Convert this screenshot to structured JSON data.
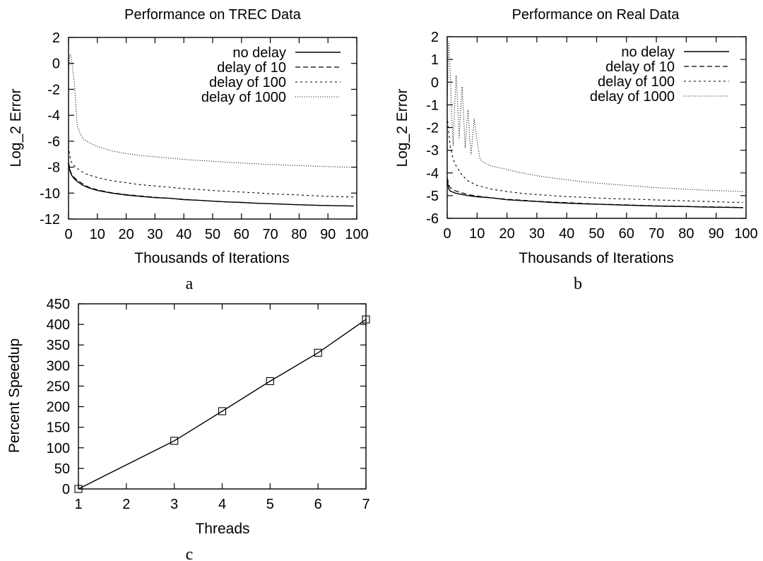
{
  "chart_data": [
    {
      "type": "line",
      "panel_label": "a",
      "title": "Performance on TREC Data",
      "xlabel": "Thousands of Iterations",
      "ylabel": "Log_2 Error",
      "xlim": [
        0,
        100
      ],
      "ylim": [
        -12,
        2
      ],
      "xticks": [
        0,
        10,
        20,
        30,
        40,
        50,
        60,
        70,
        80,
        90,
        100
      ],
      "yticks": [
        -12,
        -10,
        -8,
        -6,
        -4,
        -2,
        0,
        2
      ],
      "grid": false,
      "legend_position": "top-right",
      "series": [
        {
          "name": "no delay",
          "style": "solid",
          "x": [
            0,
            0.5,
            1,
            2,
            3,
            5,
            7,
            10,
            15,
            20,
            25,
            30,
            35,
            40,
            45,
            50,
            55,
            60,
            65,
            70,
            75,
            80,
            85,
            90,
            95,
            99
          ],
          "y": [
            -7.8,
            -8.3,
            -8.6,
            -8.9,
            -9.1,
            -9.4,
            -9.6,
            -9.8,
            -10.0,
            -10.15,
            -10.25,
            -10.35,
            -10.4,
            -10.5,
            -10.55,
            -10.62,
            -10.68,
            -10.72,
            -10.78,
            -10.82,
            -10.86,
            -10.9,
            -10.93,
            -10.96,
            -10.98,
            -11.0
          ]
        },
        {
          "name": "delay of 10",
          "style": "dashed",
          "x": [
            0,
            0.5,
            1,
            2,
            3,
            5,
            7,
            10,
            15,
            20,
            25,
            30,
            35,
            40,
            45,
            50,
            55,
            60,
            65,
            70,
            75,
            80,
            85,
            90,
            95,
            99
          ],
          "y": [
            -7.6,
            -8.2,
            -8.5,
            -8.8,
            -9.0,
            -9.3,
            -9.55,
            -9.75,
            -9.98,
            -10.12,
            -10.22,
            -10.32,
            -10.4,
            -10.48,
            -10.55,
            -10.62,
            -10.68,
            -10.72,
            -10.78,
            -10.82,
            -10.86,
            -10.9,
            -10.93,
            -10.96,
            -10.98,
            -11.0
          ]
        },
        {
          "name": "delay of 100",
          "style": "short-dashed",
          "x": [
            0,
            0.5,
            1,
            2,
            3,
            5,
            7,
            10,
            15,
            20,
            25,
            30,
            35,
            40,
            45,
            50,
            55,
            60,
            65,
            70,
            75,
            80,
            85,
            90,
            95,
            99
          ],
          "y": [
            -6.4,
            -7.2,
            -7.6,
            -7.9,
            -8.1,
            -8.4,
            -8.6,
            -8.8,
            -9.05,
            -9.2,
            -9.35,
            -9.45,
            -9.55,
            -9.65,
            -9.72,
            -9.8,
            -9.86,
            -9.92,
            -9.98,
            -10.05,
            -10.1,
            -10.15,
            -10.2,
            -10.25,
            -10.28,
            -10.3
          ]
        },
        {
          "name": "delay of 1000",
          "style": "dotted",
          "x": [
            0,
            0.3,
            0.7,
            1,
            1.5,
            2,
            2.5,
            3,
            4,
            5,
            7,
            10,
            15,
            20,
            25,
            30,
            35,
            40,
            45,
            50,
            55,
            60,
            65,
            70,
            75,
            80,
            85,
            90,
            95,
            99
          ],
          "y": [
            -1.0,
            0.5,
            0.7,
            0.3,
            -0.5,
            -1.5,
            -3.0,
            -4.8,
            -5.4,
            -5.8,
            -6.1,
            -6.4,
            -6.75,
            -6.95,
            -7.1,
            -7.2,
            -7.3,
            -7.4,
            -7.48,
            -7.55,
            -7.62,
            -7.68,
            -7.74,
            -7.8,
            -7.84,
            -7.88,
            -7.92,
            -7.96,
            -7.99,
            -8.0
          ]
        }
      ]
    },
    {
      "type": "line",
      "panel_label": "b",
      "title": "Performance on Real Data",
      "xlabel": "Thousands of Iterations",
      "ylabel": "Log_2 Error",
      "xlim": [
        0,
        100
      ],
      "ylim": [
        -6,
        2
      ],
      "xticks": [
        0,
        10,
        20,
        30,
        40,
        50,
        60,
        70,
        80,
        90,
        100
      ],
      "yticks": [
        -6,
        -5,
        -4,
        -3,
        -2,
        -1,
        0,
        1,
        2
      ],
      "grid": false,
      "legend_position": "top-right",
      "series": [
        {
          "name": "no delay",
          "style": "solid",
          "x": [
            0,
            0.5,
            1,
            2,
            3,
            5,
            7,
            10,
            15,
            20,
            25,
            30,
            35,
            40,
            45,
            50,
            55,
            60,
            65,
            70,
            75,
            80,
            85,
            90,
            95,
            99
          ],
          "y": [
            -4.3,
            -4.7,
            -4.8,
            -4.85,
            -4.9,
            -4.95,
            -5.0,
            -5.05,
            -5.1,
            -5.18,
            -5.22,
            -5.26,
            -5.3,
            -5.33,
            -5.36,
            -5.38,
            -5.4,
            -5.42,
            -5.44,
            -5.46,
            -5.47,
            -5.48,
            -5.5,
            -5.51,
            -5.52,
            -5.53
          ]
        },
        {
          "name": "delay of 10",
          "style": "dashed",
          "x": [
            0,
            0.5,
            1,
            2,
            3,
            5,
            7,
            10,
            15,
            20,
            25,
            30,
            35,
            40,
            45,
            50,
            55,
            60,
            65,
            70,
            75,
            80,
            85,
            90,
            95,
            99
          ],
          "y": [
            -4.2,
            -4.5,
            -4.65,
            -4.75,
            -4.8,
            -4.88,
            -4.95,
            -5.02,
            -5.1,
            -5.16,
            -5.2,
            -5.25,
            -5.28,
            -5.31,
            -5.34,
            -5.37,
            -5.39,
            -5.41,
            -5.43,
            -5.45,
            -5.46,
            -5.47,
            -5.49,
            -5.5,
            -5.51,
            -5.52
          ]
        },
        {
          "name": "delay of 100",
          "style": "short-dashed",
          "x": [
            0,
            0.5,
            1,
            2,
            3,
            4,
            5,
            7,
            10,
            15,
            20,
            25,
            30,
            35,
            40,
            45,
            50,
            55,
            60,
            65,
            70,
            75,
            80,
            85,
            90,
            95,
            99
          ],
          "y": [
            -1.5,
            -2.2,
            -2.8,
            -3.4,
            -3.7,
            -3.9,
            -4.1,
            -4.35,
            -4.55,
            -4.72,
            -4.82,
            -4.9,
            -4.95,
            -5.0,
            -5.04,
            -5.07,
            -5.1,
            -5.13,
            -5.15,
            -5.17,
            -5.19,
            -5.21,
            -5.23,
            -5.25,
            -5.27,
            -5.29,
            -5.3
          ]
        },
        {
          "name": "delay of 1000",
          "style": "dotted",
          "x": [
            0,
            0.5,
            1,
            1.5,
            2,
            2.5,
            3,
            3.5,
            4,
            4.5,
            5,
            5.5,
            6,
            6.5,
            7,
            7.5,
            8,
            8.5,
            9,
            10,
            11,
            12,
            13,
            15,
            20,
            25,
            30,
            35,
            40,
            45,
            50,
            55,
            60,
            65,
            70,
            75,
            80,
            85,
            90,
            95,
            99
          ],
          "y": [
            -1.0,
            1.8,
            0.5,
            -1.5,
            -2.8,
            -1.0,
            0.3,
            -1.0,
            -2.5,
            -1.2,
            -0.2,
            -1.5,
            -2.9,
            -1.9,
            -1.2,
            -2.4,
            -3.2,
            -2.4,
            -1.6,
            -2.6,
            -3.4,
            -3.5,
            -3.6,
            -3.7,
            -3.85,
            -4.0,
            -4.12,
            -4.22,
            -4.3,
            -4.38,
            -4.45,
            -4.5,
            -4.55,
            -4.6,
            -4.65,
            -4.68,
            -4.72,
            -4.75,
            -4.78,
            -4.8,
            -4.82
          ]
        }
      ]
    },
    {
      "type": "line",
      "panel_label": "c",
      "title": "",
      "xlabel": "Threads",
      "ylabel": "Percent Speedup",
      "xlim": [
        1,
        7
      ],
      "ylim": [
        0,
        450
      ],
      "xticks": [
        1,
        2,
        3,
        4,
        5,
        6,
        7
      ],
      "yticks": [
        0,
        50,
        100,
        150,
        200,
        250,
        300,
        350,
        400,
        450
      ],
      "grid": false,
      "markers": "open-square",
      "series": [
        {
          "name": "",
          "style": "solid",
          "x": [
            1,
            3,
            4,
            5,
            6,
            7
          ],
          "y": [
            0,
            117,
            189,
            262,
            331,
            412
          ]
        }
      ]
    }
  ]
}
